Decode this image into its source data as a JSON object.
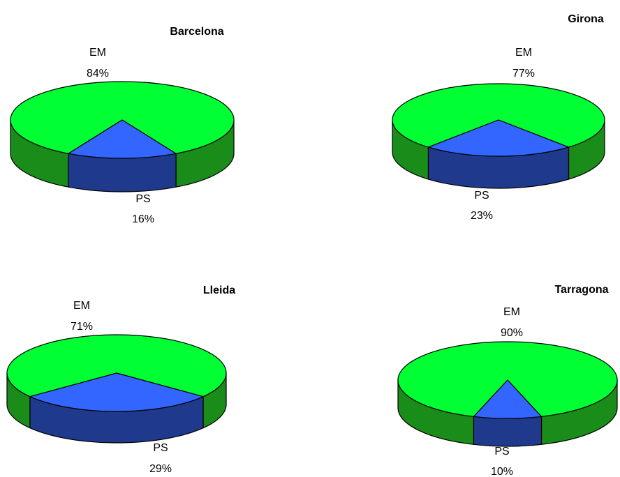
{
  "colors": {
    "em_top": "#00ff33",
    "em_side": "#1a8c1a",
    "ps_top": "#3366ff",
    "ps_side": "#1f3a8c",
    "outline": "#000000"
  },
  "chart_data": [
    {
      "type": "pie",
      "title": "Barcelona",
      "labels": [
        "EM",
        "PS"
      ],
      "values": [
        84,
        16
      ],
      "value_labels": [
        "84%",
        "16%"
      ]
    },
    {
      "type": "pie",
      "title": "Girona",
      "labels": [
        "EM",
        "PS"
      ],
      "values": [
        77,
        23
      ],
      "value_labels": [
        "77%",
        "23%"
      ]
    },
    {
      "type": "pie",
      "title": "Lleida",
      "labels": [
        "EM",
        "PS"
      ],
      "values": [
        71,
        29
      ],
      "value_labels": [
        "71%",
        "29%"
      ]
    },
    {
      "type": "pie",
      "title": "Tarragona",
      "labels": [
        "EM",
        "PS"
      ],
      "values": [
        90,
        10
      ],
      "value_labels": [
        "90%",
        "10%"
      ]
    }
  ]
}
